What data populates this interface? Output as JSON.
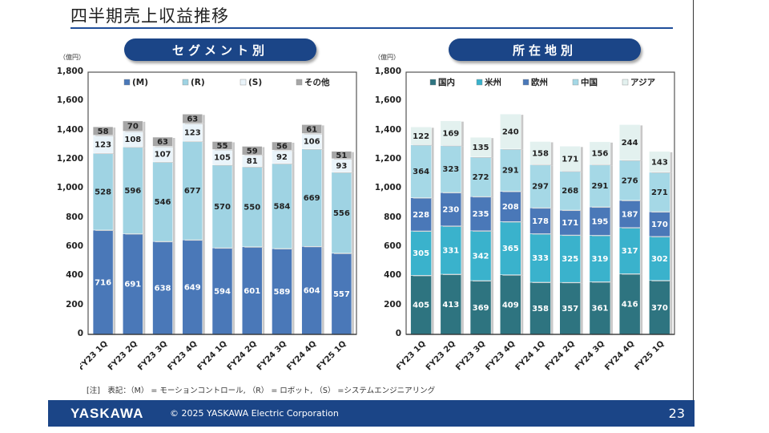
{
  "title": "四半期売上収益推移",
  "unit_label": "（億円）",
  "note": "[注]　表記：（M） = モーションコントロール, （R） = ロボット, （S） =システムエンジニアリング",
  "footer": {
    "logo": "YASKAWA",
    "copyright": "© 2025 YASKAWA Electric Corporation",
    "page": "23"
  },
  "chart_data": [
    {
      "type": "bar",
      "stacked": true,
      "title": "セグメント別",
      "categories": [
        "FY23 1Q",
        "FY23 2Q",
        "FY23 3Q",
        "FY23 4Q",
        "FY24 1Q",
        "FY24 2Q",
        "FY24 3Q",
        "FY24 4Q",
        "FY25 1Q"
      ],
      "ylim": [
        0,
        1800
      ],
      "yticks": [
        "0",
        "200",
        "400",
        "600",
        "800",
        "1,000",
        "1,200",
        "1,400",
        "1,600",
        "1,800"
      ],
      "ylabel": "（億円）",
      "series": [
        {
          "name": "(M)",
          "color": "#4a78b8",
          "label_color": "#ffffff",
          "values": [
            716,
            691,
            638,
            649,
            594,
            601,
            589,
            604,
            557
          ]
        },
        {
          "name": "(R)",
          "color": "#9fd3e3",
          "label_color": "#222222",
          "values": [
            528,
            596,
            546,
            677,
            570,
            550,
            584,
            669,
            556
          ]
        },
        {
          "name": "(S)",
          "color": "#eaf4fa",
          "label_color": "#222222",
          "values": [
            123,
            108,
            107,
            123,
            105,
            81,
            92,
            106,
            93
          ]
        },
        {
          "name": "その他",
          "color": "#a6a6a6",
          "label_color": "#222222",
          "values": [
            58,
            70,
            63,
            63,
            55,
            59,
            56,
            61,
            51
          ]
        }
      ]
    },
    {
      "type": "bar",
      "stacked": true,
      "title": "所在地別",
      "categories": [
        "FY23 1Q",
        "FY23 2Q",
        "FY23 3Q",
        "FY23 4Q",
        "FY24 1Q",
        "FY24 2Q",
        "FY24 3Q",
        "FY24 4Q",
        "FY25 1Q"
      ],
      "ylim": [
        0,
        1800
      ],
      "yticks": [
        "0",
        "200",
        "400",
        "600",
        "800",
        "1,000",
        "1,200",
        "1,400",
        "1,600",
        "1,800"
      ],
      "ylabel": "（億円）",
      "series": [
        {
          "name": "国内",
          "color": "#2e7480",
          "label_color": "#ffffff",
          "values": [
            405,
            413,
            369,
            409,
            358,
            357,
            361,
            416,
            370
          ]
        },
        {
          "name": "米州",
          "color": "#3ab2cc",
          "label_color": "#ffffff",
          "values": [
            305,
            331,
            342,
            365,
            333,
            325,
            319,
            317,
            302
          ]
        },
        {
          "name": "欧州",
          "color": "#4a78b8",
          "label_color": "#ffffff",
          "values": [
            228,
            230,
            235,
            208,
            178,
            171,
            195,
            187,
            170
          ]
        },
        {
          "name": "中国",
          "color": "#a5d8e6",
          "label_color": "#222222",
          "values": [
            364,
            323,
            272,
            291,
            297,
            268,
            291,
            276,
            271
          ]
        },
        {
          "name": "アジア",
          "color": "#e3f1ef",
          "label_color": "#222222",
          "values": [
            122,
            169,
            135,
            240,
            158,
            171,
            156,
            244,
            143
          ]
        }
      ]
    }
  ]
}
